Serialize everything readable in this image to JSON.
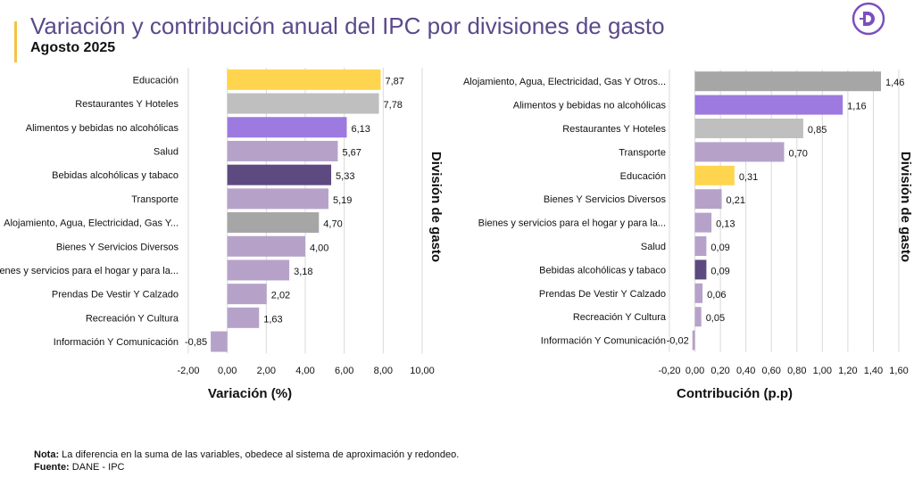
{
  "header": {
    "title": "Variación  y contribución anual del IPC por divisiones de gasto",
    "subtitle": "Agosto 2025"
  },
  "logo": {
    "icon": "dane-d-logo-icon",
    "letter": "D",
    "color": "#7b4fbf"
  },
  "colors": {
    "yellow": "#ffd54f",
    "gray_light": "#bfbfbf",
    "purple_bright": "#9c7ae0",
    "lavender": "#b6a2c9",
    "dark_purple": "#5c4a80",
    "gray_dark": "#a6a6a6",
    "grid": "#d9d9d9"
  },
  "chart_data": [
    {
      "type": "bar",
      "orientation": "horizontal",
      "xlabel": "Variación (%)",
      "ylabel": "División de gasto",
      "xlim": [
        -2,
        10
      ],
      "xticks": [
        "-2,00",
        "0,00",
        "2,00",
        "4,00",
        "6,00",
        "8,00",
        "10,00"
      ],
      "categories": [
        "Educación",
        "Restaurantes Y Hoteles",
        "Alimentos y bebidas no alcohólicas",
        "Salud",
        "Bebidas alcohólicas y tabaco",
        "Transporte",
        "Alojamiento, Agua, Electricidad, Gas Y...",
        "Bienes Y Servicios Diversos",
        "ienes y servicios para el hogar y para la...",
        "Prendas De Vestir Y Calzado",
        "Recreación Y Cultura",
        "Información Y Comunicación"
      ],
      "values": [
        7.87,
        7.78,
        6.13,
        5.67,
        5.33,
        5.19,
        4.7,
        4.0,
        3.18,
        2.02,
        1.63,
        -0.85
      ],
      "labels": [
        "7,87",
        "7,78",
        "6,13",
        "5,67",
        "5,33",
        "5,19",
        "4,70",
        "4,00",
        "3,18",
        "2,02",
        "1,63",
        "-0,85"
      ],
      "colors": [
        "yellow",
        "gray_light",
        "purple_bright",
        "lavender",
        "dark_purple",
        "lavender",
        "gray_dark",
        "lavender",
        "lavender",
        "lavender",
        "lavender",
        "lavender"
      ]
    },
    {
      "type": "bar",
      "orientation": "horizontal",
      "xlabel": "Contribución (p.p)",
      "ylabel": "División de gasto",
      "xlim": [
        -0.2,
        1.6
      ],
      "xticks": [
        "-0,20",
        "0,00",
        "0,20",
        "0,40",
        "0,60",
        "0,80",
        "1,00",
        "1,20",
        "1,40",
        "1,60"
      ],
      "categories": [
        "Alojamiento, Agua, Electricidad, Gas Y Otros...",
        "Alimentos y bebidas no alcohólicas",
        "Restaurantes Y Hoteles",
        "Transporte",
        "Educación",
        "Bienes Y Servicios Diversos",
        "Bienes y servicios para el hogar y para la...",
        "Salud",
        "Bebidas alcohólicas y tabaco",
        "Prendas De Vestir Y Calzado",
        "Recreación Y Cultura",
        "Información Y Comunicación"
      ],
      "values": [
        1.46,
        1.16,
        0.85,
        0.7,
        0.31,
        0.21,
        0.13,
        0.09,
        0.09,
        0.06,
        0.05,
        -0.02
      ],
      "labels": [
        "1,46",
        "1,16",
        "0,85",
        "0,70",
        "0,31",
        "0,21",
        "0,13",
        "0,09",
        "0,09",
        "0,06",
        "0,05",
        "-0,02"
      ],
      "colors": [
        "gray_dark",
        "purple_bright",
        "gray_light",
        "lavender",
        "yellow",
        "lavender",
        "lavender",
        "lavender",
        "dark_purple",
        "lavender",
        "lavender",
        "lavender"
      ]
    }
  ],
  "footer": {
    "note_label": "Nota:",
    "note_text": "La diferencia en la suma de las variables, obedece al sistema de aproximación y redondeo.",
    "source_label": "Fuente:",
    "source_text": "DANE - IPC"
  }
}
